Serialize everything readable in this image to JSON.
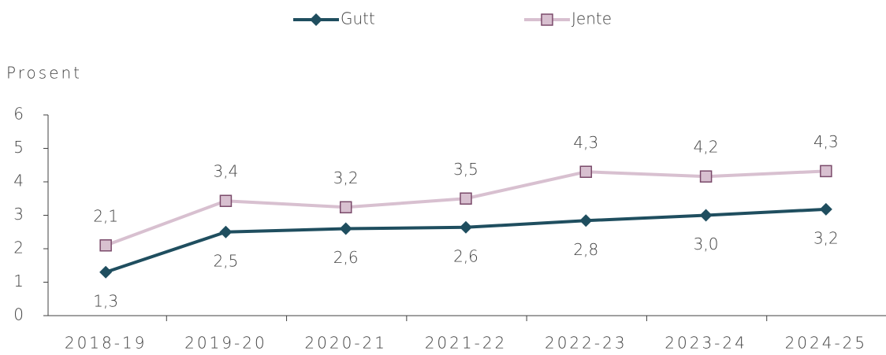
{
  "chart_data": {
    "type": "line",
    "y_label": "Prosent",
    "categories": [
      "2018-19",
      "2019-20",
      "2020-21",
      "2021-22",
      "2022-23",
      "2023-24",
      "2024-25"
    ],
    "series": [
      {
        "name": "Gutt",
        "color": "#1f4e5f",
        "marker": "diamond",
        "label_position": "below",
        "values": [
          1.3,
          2.5,
          2.6,
          2.64,
          2.84,
          3.0,
          3.18
        ],
        "value_labels": [
          "1,3",
          "2,5",
          "2,6",
          "2,6",
          "2,8",
          "3,0",
          "3,2"
        ]
      },
      {
        "name": "Jente",
        "color": "#d8c0d0",
        "marker": "square",
        "marker_edge": "#7a4a6a",
        "label_position": "above",
        "values": [
          2.1,
          3.43,
          3.24,
          3.5,
          4.3,
          4.16,
          4.32
        ],
        "value_labels": [
          "2,1",
          "3,4",
          "3,2",
          "3,5",
          "4,3",
          "4,2",
          "4,3"
        ]
      }
    ],
    "ylim": [
      0,
      6
    ],
    "yticks": [
      0,
      1,
      2,
      3,
      4,
      5,
      6
    ],
    "legend": "top"
  }
}
